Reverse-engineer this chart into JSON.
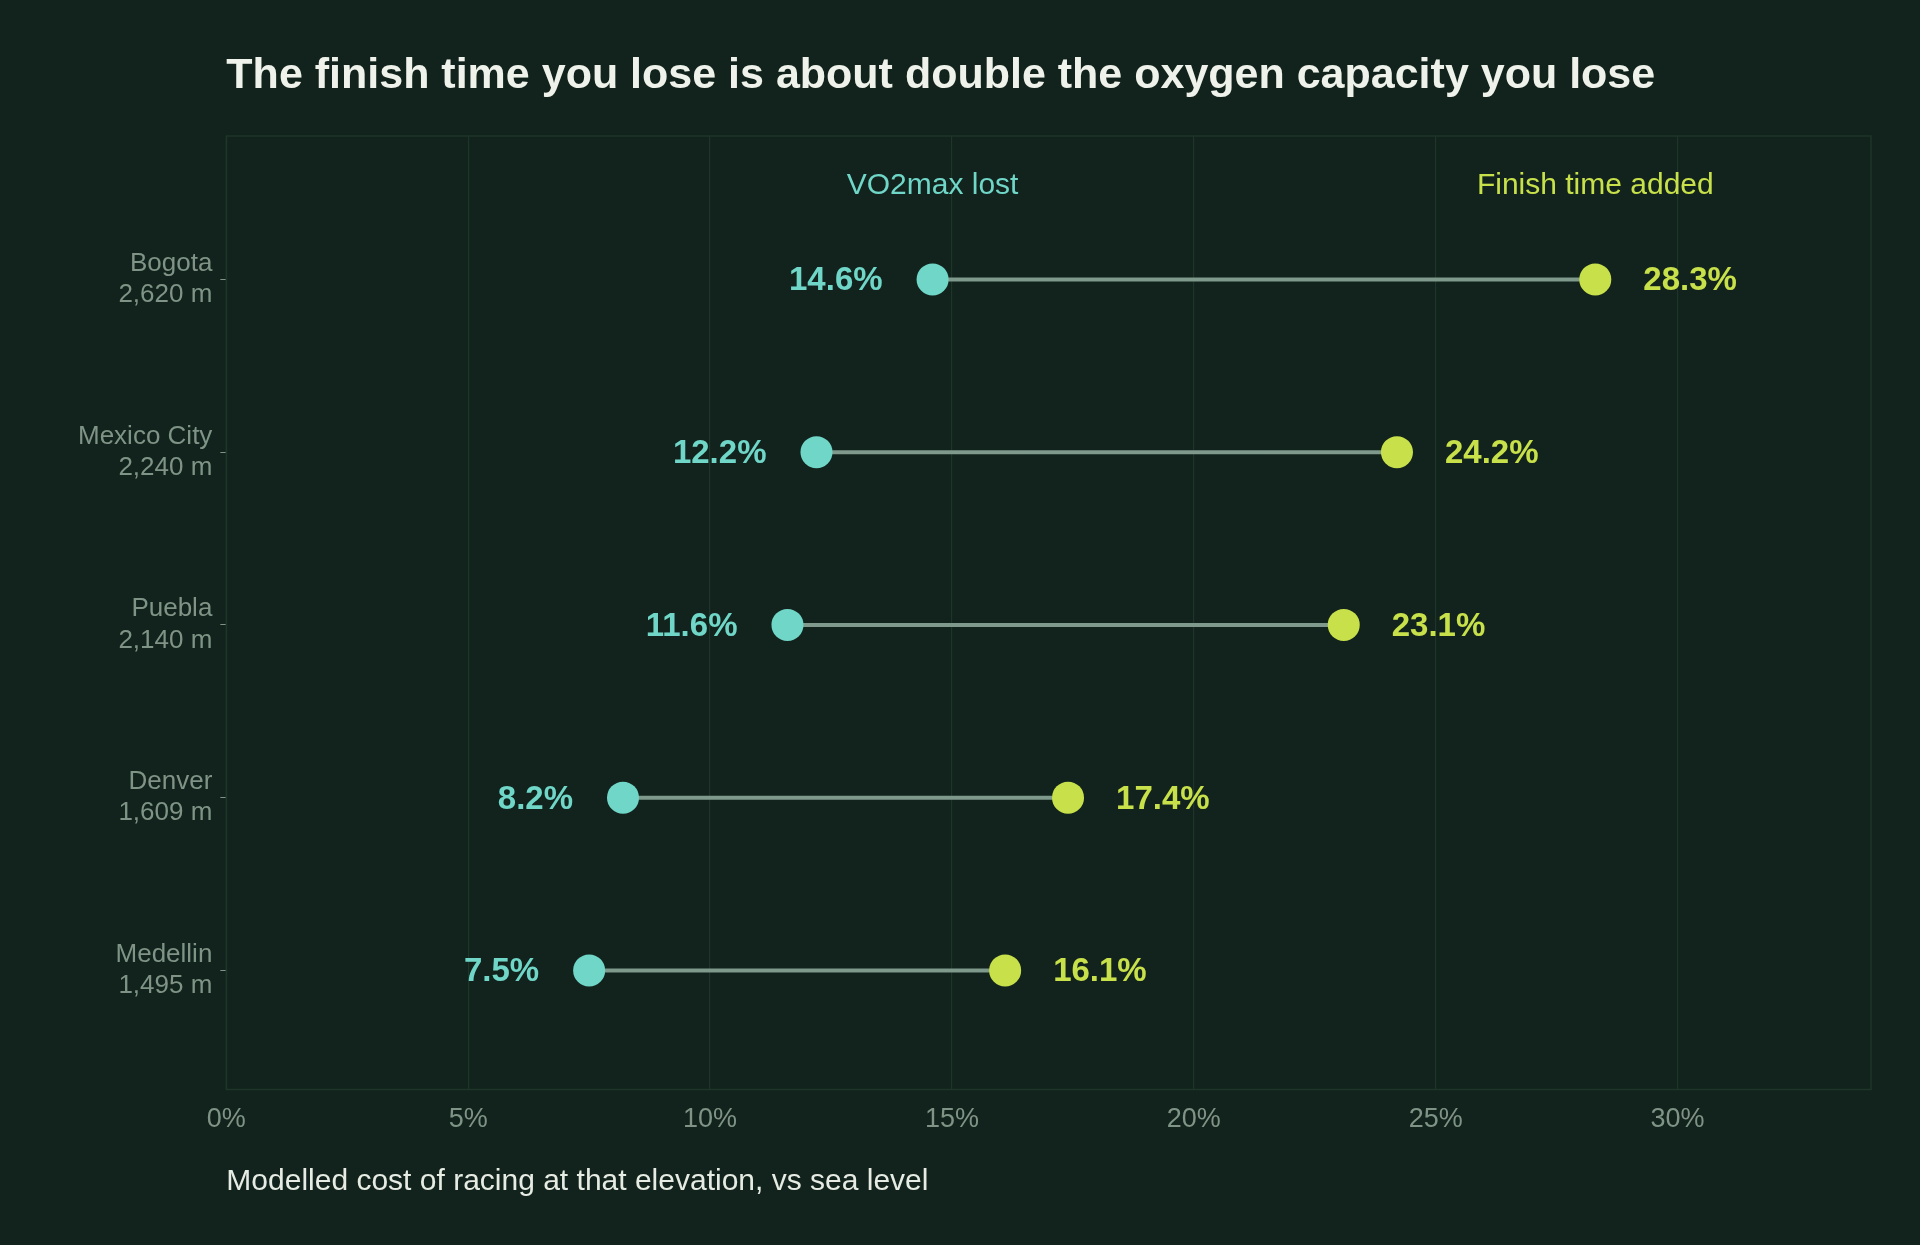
{
  "chart_data": {
    "type": "scatter",
    "orientation": "horizontal",
    "title": "The finish time you lose is about double the oxygen capacity you lose",
    "xlabel": "Modelled cost of racing at that elevation, vs sea level",
    "categories": [
      "Bogota\n2,620 m",
      "Mexico City\n2,240 m",
      "Puebla\n2,140 m",
      "Denver\n1,609 m",
      "Medellin\n1,495 m"
    ],
    "series": [
      {
        "name": "VO2max lost",
        "color": "#6fd6c8",
        "values": [
          14.6,
          12.2,
          11.6,
          8.2,
          7.5
        ],
        "value_labels": [
          "14.6%",
          "12.2%",
          "11.6%",
          "8.2%",
          "7.5%"
        ]
      },
      {
        "name": "Finish time added",
        "color": "#c8e04a",
        "values": [
          28.3,
          24.2,
          23.1,
          17.4,
          16.1
        ],
        "value_labels": [
          "28.3%",
          "24.2%",
          "23.1%",
          "17.4%",
          "16.1%"
        ]
      }
    ],
    "xlim": [
      0,
      34
    ],
    "xticks": [
      {
        "value": 0,
        "label": "0%"
      },
      {
        "value": 5,
        "label": "5%"
      },
      {
        "value": 10,
        "label": "10%"
      },
      {
        "value": 15,
        "label": "15%"
      },
      {
        "value": 20,
        "label": "20%"
      },
      {
        "value": 25,
        "label": "25%"
      },
      {
        "value": 30,
        "label": "30%"
      }
    ],
    "grid": "x",
    "legend": false,
    "marker": "circle"
  }
}
